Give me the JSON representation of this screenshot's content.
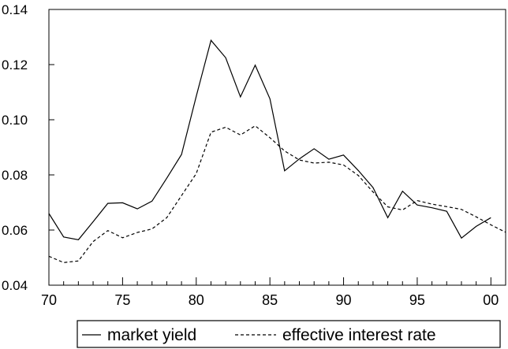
{
  "chart_data": {
    "type": "line",
    "title": "",
    "xlabel": "",
    "ylabel": "",
    "xlim": [
      1970,
      2001
    ],
    "ylim": [
      0.04,
      0.14
    ],
    "x_ticks": [
      {
        "value": 1970,
        "label": "70"
      },
      {
        "value": 1975,
        "label": "75"
      },
      {
        "value": 1980,
        "label": "80"
      },
      {
        "value": 1985,
        "label": "85"
      },
      {
        "value": 1990,
        "label": "90"
      },
      {
        "value": 1995,
        "label": "95"
      },
      {
        "value": 2000,
        "label": "00"
      }
    ],
    "y_ticks": [
      {
        "value": 0.04,
        "label": "0.04"
      },
      {
        "value": 0.06,
        "label": "0.06"
      },
      {
        "value": 0.08,
        "label": "0.08"
      },
      {
        "value": 0.1,
        "label": "0.10"
      },
      {
        "value": 0.12,
        "label": "0.12"
      },
      {
        "value": 0.14,
        "label": "0.14"
      }
    ],
    "grid": false,
    "legend_position": "bottom",
    "series": [
      {
        "name": "market yield",
        "style": "solid",
        "color": "#000000",
        "points": [
          [
            1970,
            0.066
          ],
          [
            1971,
            0.0575
          ],
          [
            1972,
            0.0565
          ],
          [
            1973,
            0.063
          ],
          [
            1974,
            0.0697
          ],
          [
            1975,
            0.0699
          ],
          [
            1976,
            0.0677
          ],
          [
            1977,
            0.0705
          ],
          [
            1978,
            0.0788
          ],
          [
            1979,
            0.0874
          ],
          [
            1980,
            0.1085
          ],
          [
            1981,
            0.1288
          ],
          [
            1982,
            0.1225
          ],
          [
            1983,
            0.1083
          ],
          [
            1984,
            0.1198
          ],
          [
            1985,
            0.1076
          ],
          [
            1986,
            0.0815
          ],
          [
            1987,
            0.0858
          ],
          [
            1988,
            0.0895
          ],
          [
            1989,
            0.0857
          ],
          [
            1990,
            0.0872
          ],
          [
            1991,
            0.0816
          ],
          [
            1992,
            0.0754
          ],
          [
            1993,
            0.0645
          ],
          [
            1994,
            0.0741
          ],
          [
            1995,
            0.0691
          ],
          [
            1996,
            0.0681
          ],
          [
            1997,
            0.0668
          ],
          [
            1998,
            0.0571
          ],
          [
            1999,
            0.0613
          ],
          [
            2000,
            0.0645
          ]
        ]
      },
      {
        "name": "effective interest rate",
        "style": "dashed",
        "color": "#000000",
        "points": [
          [
            1970,
            0.0505
          ],
          [
            1971,
            0.0482
          ],
          [
            1972,
            0.0488
          ],
          [
            1973,
            0.0558
          ],
          [
            1974,
            0.0598
          ],
          [
            1975,
            0.0572
          ],
          [
            1976,
            0.0591
          ],
          [
            1977,
            0.0604
          ],
          [
            1978,
            0.0645
          ],
          [
            1979,
            0.0725
          ],
          [
            1980,
            0.0805
          ],
          [
            1981,
            0.0955
          ],
          [
            1982,
            0.0973
          ],
          [
            1983,
            0.0945
          ],
          [
            1984,
            0.0978
          ],
          [
            1985,
            0.0935
          ],
          [
            1986,
            0.0887
          ],
          [
            1987,
            0.0854
          ],
          [
            1988,
            0.0843
          ],
          [
            1989,
            0.0846
          ],
          [
            1990,
            0.0836
          ],
          [
            1991,
            0.0798
          ],
          [
            1992,
            0.0738
          ],
          [
            1993,
            0.0684
          ],
          [
            1994,
            0.0673
          ],
          [
            1995,
            0.0707
          ],
          [
            1996,
            0.0694
          ],
          [
            1997,
            0.0685
          ],
          [
            1998,
            0.0675
          ],
          [
            1999,
            0.0648
          ],
          [
            2000,
            0.0619
          ],
          [
            2001,
            0.0592
          ]
        ]
      }
    ]
  }
}
